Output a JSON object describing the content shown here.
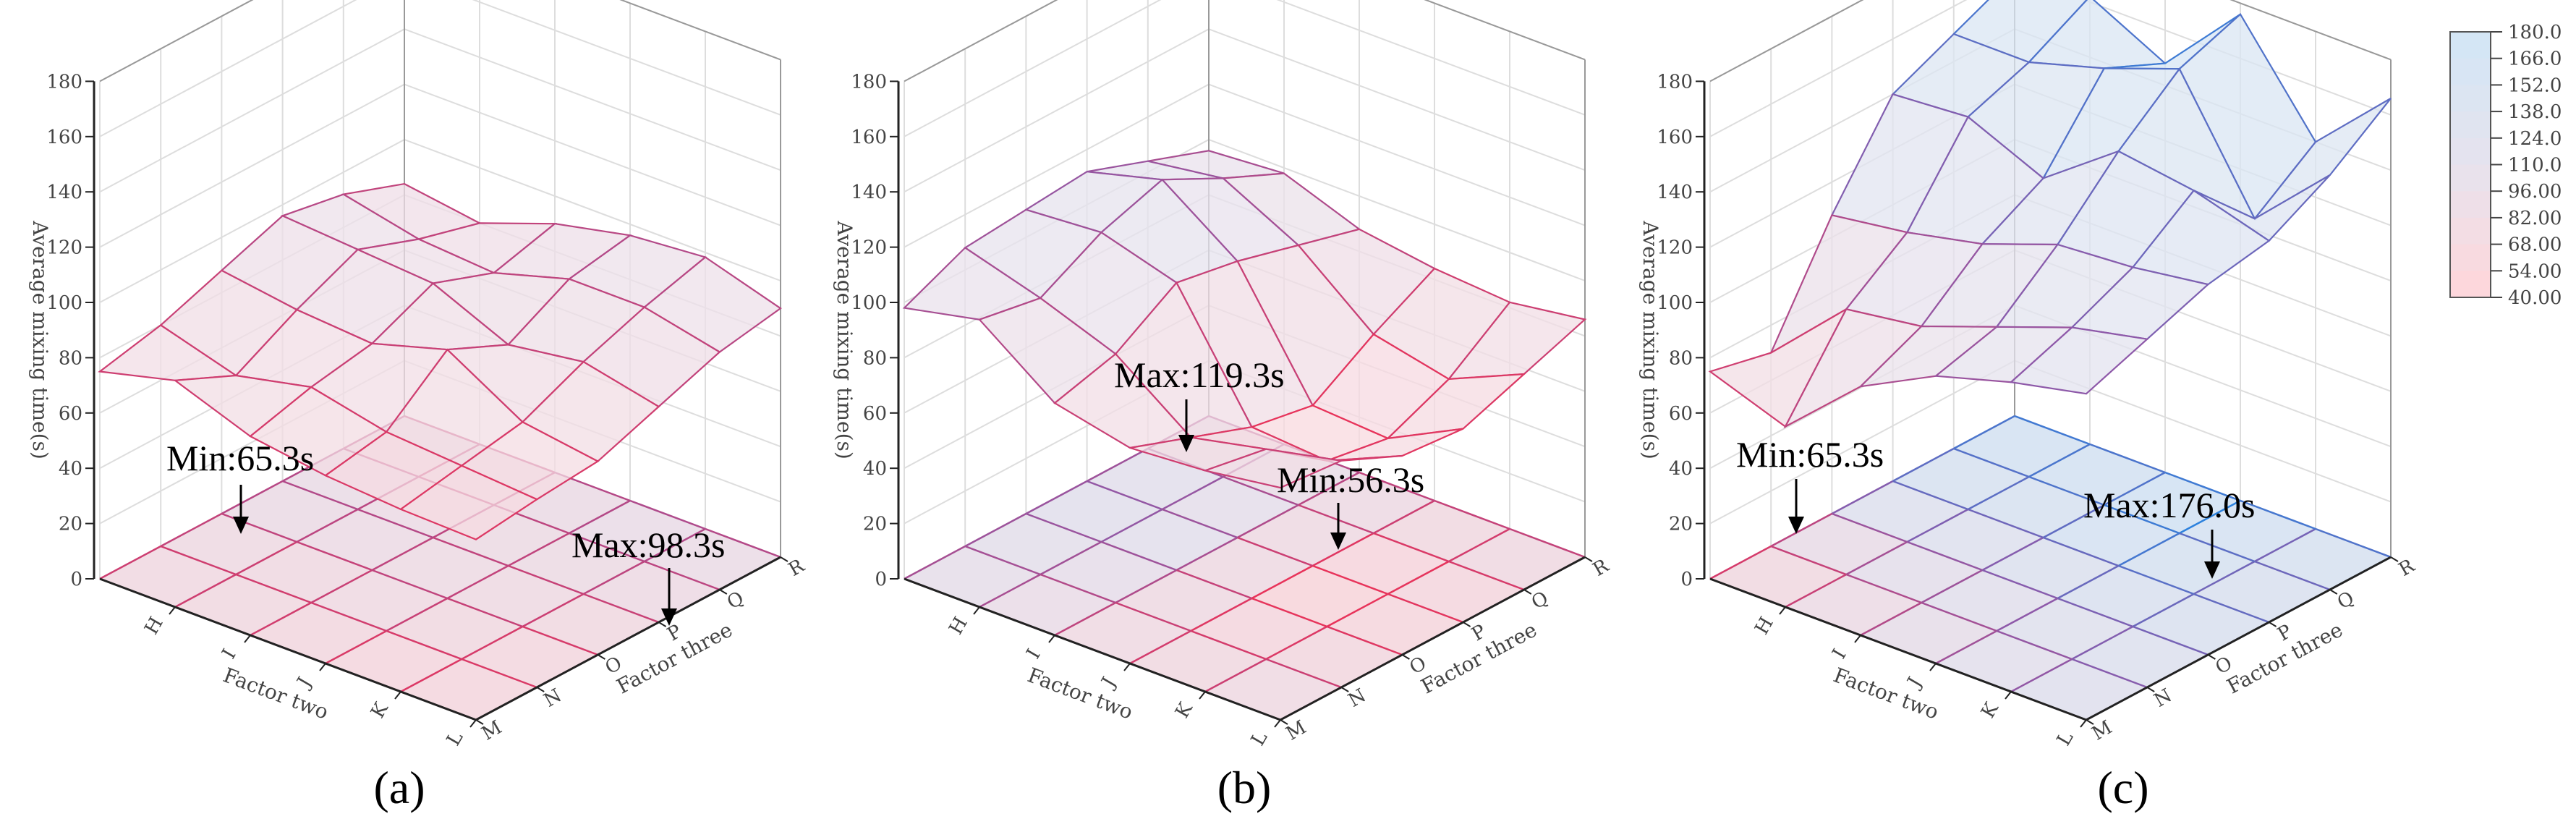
{
  "chart_data": [
    {
      "type": "surface3d",
      "panel_label": "(a)",
      "zlabel": "Average mixing time(s)",
      "xlabel": "Factor two",
      "ylabel": "Factor three",
      "x_ticks": [
        "H",
        "I",
        "J",
        "K",
        "L"
      ],
      "y_ticks": [
        "M",
        "N",
        "O",
        "P",
        "Q",
        "R"
      ],
      "z_ticks": [
        "0",
        "20",
        "40",
        "60",
        "80",
        "100",
        "120",
        "140",
        "160",
        "180"
      ],
      "zlim": [
        0,
        180
      ],
      "grid": true,
      "z": [
        [
          75,
          80,
          88,
          96,
          92,
          84
        ],
        [
          82,
          72,
          84,
          94,
          86,
          80
        ],
        [
          72,
          78,
          82,
          92,
          84,
          90
        ],
        [
          68,
          72,
          90,
          80,
          92,
          96
        ],
        [
          66,
          70,
          74,
          84,
          92,
          98.3
        ],
        [
          65.3,
          68,
          70,
          78,
          86,
          90
        ]
      ],
      "annotations": [
        {
          "text": "Min:65.3s"
        },
        {
          "text": "Max:98.3s"
        }
      ]
    },
    {
      "type": "surface3d",
      "panel_label": "(b)",
      "zlabel": "Average mixing time(s)",
      "xlabel": "Factor two",
      "ylabel": "Factor three",
      "x_ticks": [
        "H",
        "I",
        "J",
        "K",
        "L"
      ],
      "y_ticks": [
        "M",
        "N",
        "O",
        "P",
        "Q",
        "R"
      ],
      "z_ticks": [
        "0",
        "20",
        "40",
        "60",
        "80",
        "100",
        "120",
        "140",
        "160",
        "180"
      ],
      "zlim": [
        0,
        180
      ],
      "grid": true,
      "z": [
        [
          98,
          108,
          110,
          112,
          104,
          96
        ],
        [
          104,
          100,
          112,
          119.3,
          108,
          98
        ],
        [
          84,
          90,
          104,
          100,
          94,
          88
        ],
        [
          78,
          70,
          62,
          58,
          72,
          84
        ],
        [
          80,
          76,
          60,
          56.3,
          66,
          82
        ],
        [
          84,
          82,
          72,
          70,
          78,
          86
        ]
      ],
      "annotations": [
        {
          "text": "Max:119.3s"
        },
        {
          "text": "Min:56.3s"
        }
      ]
    },
    {
      "type": "surface3d",
      "panel_label": "(c)",
      "zlabel": "Average mixing time(s)",
      "xlabel": "Factor two",
      "ylabel": "Factor three",
      "x_ticks": [
        "H",
        "I",
        "J",
        "K",
        "L"
      ],
      "y_ticks": [
        "M",
        "N",
        "O",
        "P",
        "Q",
        "R"
      ],
      "z_ticks": [
        "0",
        "20",
        "40",
        "60",
        "80",
        "100",
        "120",
        "140",
        "160",
        "180"
      ],
      "zlim": [
        0,
        180
      ],
      "grid": true,
      "z": [
        [
          75,
          70,
          108,
          140,
          150,
          160
        ],
        [
          65.3,
          96,
          112,
          142,
          150,
          162
        ],
        [
          90,
          100,
          118,
          130,
          158,
          148
        ],
        [
          104,
          110,
          128,
          150,
          168,
          176.0
        ],
        [
          112,
          120,
          130,
          146,
          124,
          140
        ],
        [
          118,
          126,
          134,
          138,
          150,
          166
        ]
      ],
      "annotations": [
        {
          "text": "Min:65.3s"
        },
        {
          "text": "Max:176.0s"
        }
      ]
    }
  ],
  "colorbar": {
    "ticks": [
      "180.0",
      "166.0",
      "152.0",
      "138.0",
      "124.0",
      "110.0",
      "96.00",
      "82.00",
      "68.00",
      "54.00",
      "40.00"
    ],
    "range": [
      40,
      180
    ],
    "colors": {
      "low": "#ffd6da",
      "mid": "#e6e3ee",
      "high": "#d2e6f6"
    }
  },
  "line_colors": {
    "low": "#e8335a",
    "mid": "#8c5aaa",
    "high": "#1e88e5"
  }
}
